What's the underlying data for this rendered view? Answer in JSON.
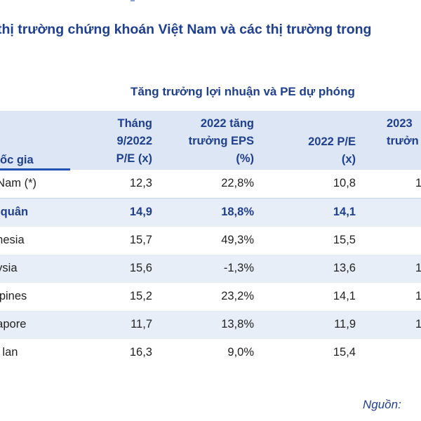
{
  "title": "thị trường chứng khoán Việt Nam và các thị trường trong",
  "subtitle": "Tăng trưởng lợi nhuận và PE dự phóng",
  "header": {
    "country": "ốc gia",
    "col1": "Tháng\n9/2022\nP/E (x)",
    "col2": "2022 tăng\ntrưởng EPS\n(%)",
    "col3": "2022 P/E\n(x)",
    "col4": "2023\ntrưởn"
  },
  "rows": [
    {
      "name": "t Nam (*)",
      "v1": "12,3",
      "v2": "22,8%",
      "v3": "10,8",
      "v4": "1"
    },
    {
      "name": "h quân",
      "v1": "14,9",
      "v2": "18,8%",
      "v3": "14,1",
      "v4": ""
    },
    {
      "name": "onesia",
      "v1": "15,7",
      "v2": "49,3%",
      "v3": "15,5",
      "v4": ""
    },
    {
      "name": "aysia",
      "v1": "15,6",
      "v2": "-1,3%",
      "v3": "13,6",
      "v4": "1"
    },
    {
      "name": "ippines",
      "v1": "15,2",
      "v2": "23,2%",
      "v3": "14,1",
      "v4": "1"
    },
    {
      "name": "gapore",
      "v1": "11,7",
      "v2": "13,8%",
      "v3": "11,9",
      "v4": "1"
    },
    {
      "name": "ái lan",
      "v1": "16,3",
      "v2": "9,0%",
      "v3": "15,4",
      "v4": ""
    }
  ],
  "source": "Nguồn:"
}
